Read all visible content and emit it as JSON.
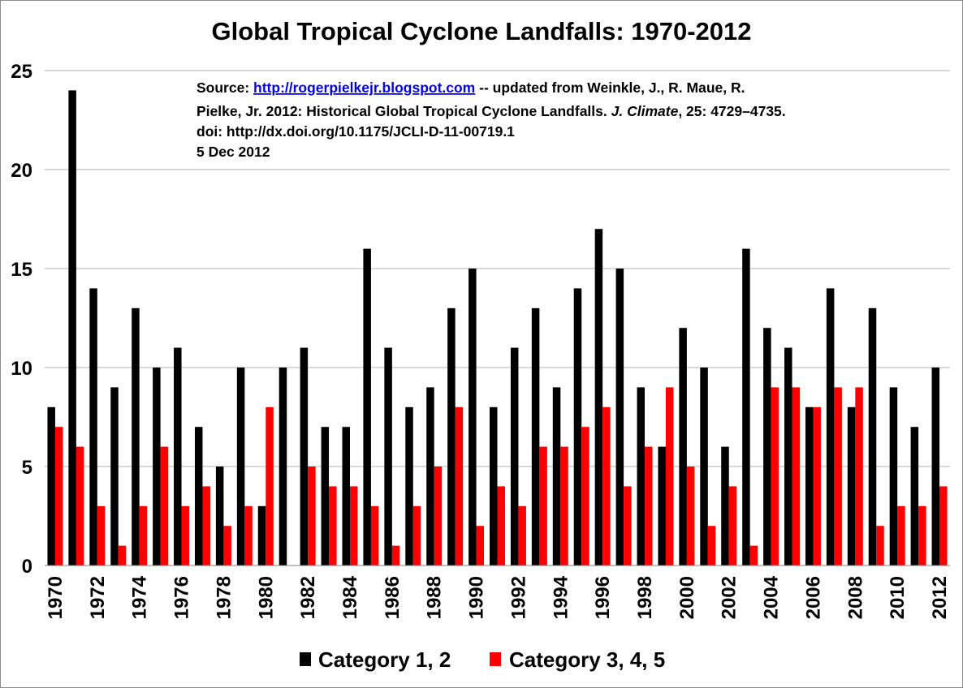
{
  "chart_data": {
    "type": "bar",
    "title": "Global Tropical Cyclone Landfalls: 1970-2012",
    "xlabel": "",
    "ylabel": "",
    "ylim": [
      0,
      25
    ],
    "yticks": [
      "0",
      "5",
      "10",
      "15",
      "20",
      "25"
    ],
    "grid": true,
    "legend_position": "bottom",
    "categories": [
      "1970",
      "1971",
      "1972",
      "1973",
      "1974",
      "1975",
      "1976",
      "1977",
      "1978",
      "1979",
      "1980",
      "1981",
      "1982",
      "1983",
      "1984",
      "1985",
      "1986",
      "1987",
      "1988",
      "1989",
      "1990",
      "1991",
      "1992",
      "1993",
      "1994",
      "1995",
      "1996",
      "1997",
      "1998",
      "1999",
      "2000",
      "2001",
      "2002",
      "2003",
      "2004",
      "2005",
      "2006",
      "2007",
      "2008",
      "2009",
      "2010",
      "2011",
      "2012"
    ],
    "xtick_labels": [
      "1970",
      "1972",
      "1974",
      "1976",
      "1978",
      "1980",
      "1982",
      "1984",
      "1986",
      "1988",
      "1990",
      "1992",
      "1994",
      "1996",
      "1998",
      "2000",
      "2002",
      "2004",
      "2006",
      "2008",
      "2010",
      "2012"
    ],
    "series": [
      {
        "name": "Category 1, 2",
        "color": "#000000",
        "values": [
          8,
          24,
          14,
          9,
          13,
          10,
          11,
          7,
          5,
          10,
          3,
          10,
          11,
          7,
          7,
          16,
          11,
          8,
          9,
          13,
          15,
          8,
          11,
          13,
          9,
          14,
          17,
          15,
          9,
          6,
          12,
          10,
          6,
          16,
          12,
          11,
          8,
          14,
          8,
          13,
          9,
          7,
          10
        ]
      },
      {
        "name": "Category 3, 4, 5",
        "color": "#ff0000",
        "values": [
          7,
          6,
          3,
          1,
          3,
          6,
          3,
          4,
          2,
          3,
          8,
          0,
          5,
          4,
          4,
          3,
          1,
          3,
          5,
          8,
          2,
          4,
          3,
          6,
          6,
          7,
          8,
          4,
          6,
          9,
          5,
          2,
          4,
          1,
          9,
          9,
          8,
          9,
          9,
          2,
          3,
          3,
          4
        ]
      }
    ],
    "annotation": {
      "line1_prefix": "Source: ",
      "line1_link": "http://rogerpielkejr.blogspot.com",
      "line1_suffix": " -- updated from Weinkle, J., R. Maue, R.",
      "line2_prefix": "Pielke, Jr. 2012: Historical Global Tropical Cyclone Landfalls. ",
      "line2_italic": "J. Climate",
      "line2_suffix": ", 25: 4729–4735.",
      "line3": "doi: http://dx.doi.org/10.1175/JCLI-D-11-00719.1",
      "line4": "5 Dec 2012"
    }
  }
}
